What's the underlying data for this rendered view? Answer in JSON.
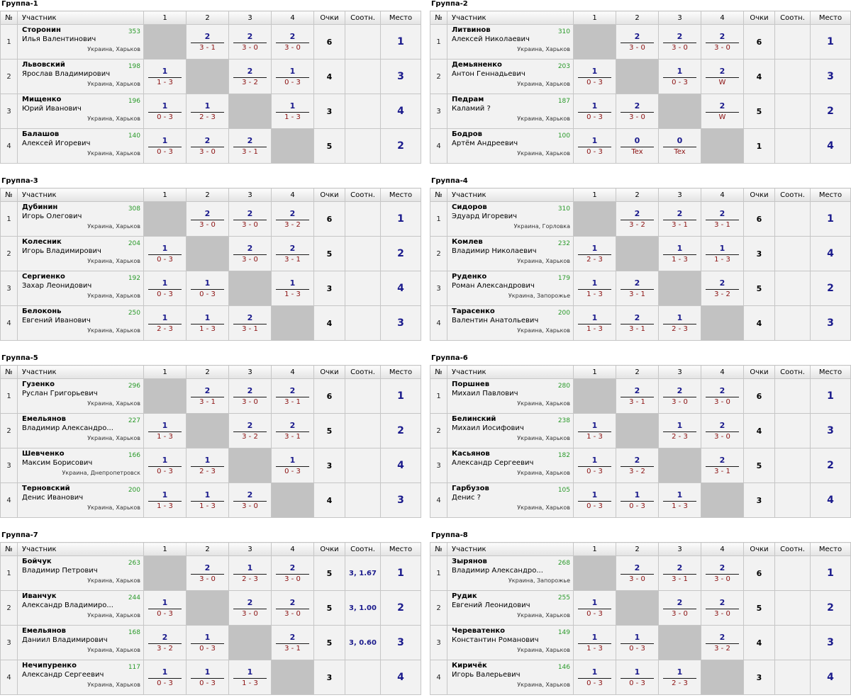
{
  "headers": {
    "num": "№",
    "player": "Участник",
    "cols": [
      "1",
      "2",
      "3",
      "4"
    ],
    "points": "Очки",
    "tiebreak": "Соотн.",
    "place": "Место"
  },
  "groups": [
    {
      "title": "Группа-1",
      "players": [
        {
          "n": "1",
          "last": "Сторонин",
          "first": "Илья Валентинович",
          "rating": "353",
          "city": "Украина, Харьков",
          "results": [
            null,
            [
              "2",
              "3 - 1"
            ],
            [
              "2",
              "3 - 0"
            ],
            [
              "2",
              "3 - 0"
            ]
          ],
          "points": "6",
          "tb": "",
          "place": "1"
        },
        {
          "n": "2",
          "last": "Львовский",
          "first": "Ярослав Владимирович",
          "rating": "198",
          "city": "Украина, Харьков",
          "results": [
            [
              "1",
              "1 - 3"
            ],
            null,
            [
              "2",
              "3 - 2"
            ],
            [
              "1",
              "0 - 3"
            ]
          ],
          "points": "4",
          "tb": "",
          "place": "3"
        },
        {
          "n": "3",
          "last": "Мищенко",
          "first": "Юрий Иванович",
          "rating": "196",
          "city": "Украина, Харьков",
          "results": [
            [
              "1",
              "0 - 3"
            ],
            [
              "1",
              "2 - 3"
            ],
            null,
            [
              "1",
              "1 - 3"
            ]
          ],
          "points": "3",
          "tb": "",
          "place": "4"
        },
        {
          "n": "4",
          "last": "Балашов",
          "first": "Алексей Игоревич",
          "rating": "140",
          "city": "Украина, Харьков",
          "results": [
            [
              "1",
              "0 - 3"
            ],
            [
              "2",
              "3 - 0"
            ],
            [
              "2",
              "3 - 1"
            ],
            null
          ],
          "points": "5",
          "tb": "",
          "place": "2"
        }
      ]
    },
    {
      "title": "Группа-2",
      "players": [
        {
          "n": "1",
          "last": "Литвинов",
          "first": "Алексей Николаевич",
          "rating": "310",
          "city": "Украина, Харьков",
          "results": [
            null,
            [
              "2",
              "3 - 0"
            ],
            [
              "2",
              "3 - 0"
            ],
            [
              "2",
              "3 - 0"
            ]
          ],
          "points": "6",
          "tb": "",
          "place": "1"
        },
        {
          "n": "2",
          "last": "Демьяненко",
          "first": "Антон Геннадьевич",
          "rating": "203",
          "city": "Украина, Харьков",
          "results": [
            [
              "1",
              "0 - 3"
            ],
            null,
            [
              "1",
              "0 - 3"
            ],
            [
              "2",
              "W"
            ]
          ],
          "points": "4",
          "tb": "",
          "place": "3"
        },
        {
          "n": "3",
          "last": "Педрам",
          "first": "Каламий ?",
          "rating": "187",
          "city": "Украина, Харьков",
          "results": [
            [
              "1",
              "0 - 3"
            ],
            [
              "2",
              "3 - 0"
            ],
            null,
            [
              "2",
              "W"
            ]
          ],
          "points": "5",
          "tb": "",
          "place": "2"
        },
        {
          "n": "4",
          "last": "Бодров",
          "first": "Артём Андреевич",
          "rating": "100",
          "city": "Украина, Харьков",
          "results": [
            [
              "1",
              "0 - 3"
            ],
            [
              "0",
              "Tex"
            ],
            [
              "0",
              "Tex"
            ],
            null
          ],
          "points": "1",
          "tb": "",
          "place": "4"
        }
      ]
    },
    {
      "title": "Группа-3",
      "players": [
        {
          "n": "1",
          "last": "Дубинин",
          "first": "Игорь Олегович",
          "rating": "308",
          "city": "Украина, Харьков",
          "results": [
            null,
            [
              "2",
              "3 - 0"
            ],
            [
              "2",
              "3 - 0"
            ],
            [
              "2",
              "3 - 2"
            ]
          ],
          "points": "6",
          "tb": "",
          "place": "1"
        },
        {
          "n": "2",
          "last": "Колесник",
          "first": "Игорь Владимирович",
          "rating": "204",
          "city": "Украина, Харьков",
          "results": [
            [
              "1",
              "0 - 3"
            ],
            null,
            [
              "2",
              "3 - 0"
            ],
            [
              "2",
              "3 - 1"
            ]
          ],
          "points": "5",
          "tb": "",
          "place": "2"
        },
        {
          "n": "3",
          "last": "Сергиенко",
          "first": "Захар Леонидович",
          "rating": "192",
          "city": "Украина, Харьков",
          "results": [
            [
              "1",
              "0 - 3"
            ],
            [
              "1",
              "0 - 3"
            ],
            null,
            [
              "1",
              "1 - 3"
            ]
          ],
          "points": "3",
          "tb": "",
          "place": "4"
        },
        {
          "n": "4",
          "last": "Белоконь",
          "first": "Евгений Иванович",
          "rating": "250",
          "city": "Украина, Харьков",
          "results": [
            [
              "1",
              "2 - 3"
            ],
            [
              "1",
              "1 - 3"
            ],
            [
              "2",
              "3 - 1"
            ],
            null
          ],
          "points": "4",
          "tb": "",
          "place": "3"
        }
      ]
    },
    {
      "title": "Группа-4",
      "players": [
        {
          "n": "1",
          "last": "Сидоров",
          "first": "Эдуард Игоревич",
          "rating": "310",
          "city": "Украина, Горловка",
          "results": [
            null,
            [
              "2",
              "3 - 2"
            ],
            [
              "2",
              "3 - 1"
            ],
            [
              "2",
              "3 - 1"
            ]
          ],
          "points": "6",
          "tb": "",
          "place": "1"
        },
        {
          "n": "2",
          "last": "Комлев",
          "first": "Владимир Николаевич",
          "rating": "232",
          "city": "Украина, Харьков",
          "results": [
            [
              "1",
              "2 - 3"
            ],
            null,
            [
              "1",
              "1 - 3"
            ],
            [
              "1",
              "1 - 3"
            ]
          ],
          "points": "3",
          "tb": "",
          "place": "4"
        },
        {
          "n": "3",
          "last": "Руденко",
          "first": "Роман Александрович",
          "rating": "179",
          "city": "Украина, Запорожье",
          "results": [
            [
              "1",
              "1 - 3"
            ],
            [
              "2",
              "3 - 1"
            ],
            null,
            [
              "2",
              "3 - 2"
            ]
          ],
          "points": "5",
          "tb": "",
          "place": "2"
        },
        {
          "n": "4",
          "last": "Тарасенко",
          "first": "Валентин Анатольевич",
          "rating": "200",
          "city": "Украина, Харьков",
          "results": [
            [
              "1",
              "1 - 3"
            ],
            [
              "2",
              "3 - 1"
            ],
            [
              "1",
              "2 - 3"
            ],
            null
          ],
          "points": "4",
          "tb": "",
          "place": "3"
        }
      ]
    },
    {
      "title": "Группа-5",
      "players": [
        {
          "n": "1",
          "last": "Гузенко",
          "first": "Руслан Григорьевич",
          "rating": "296",
          "city": "Украина, Харьков",
          "results": [
            null,
            [
              "2",
              "3 - 1"
            ],
            [
              "2",
              "3 - 0"
            ],
            [
              "2",
              "3 - 1"
            ]
          ],
          "points": "6",
          "tb": "",
          "place": "1"
        },
        {
          "n": "2",
          "last": "Емельянов",
          "first": "Владимир Александро...",
          "rating": "227",
          "city": "Украина, Харьков",
          "results": [
            [
              "1",
              "1 - 3"
            ],
            null,
            [
              "2",
              "3 - 2"
            ],
            [
              "2",
              "3 - 1"
            ]
          ],
          "points": "5",
          "tb": "",
          "place": "2"
        },
        {
          "n": "3",
          "last": "Шевченко",
          "first": "Максим Борисович",
          "rating": "166",
          "city": "Украина, Днепропетровск",
          "results": [
            [
              "1",
              "0 - 3"
            ],
            [
              "1",
              "2 - 3"
            ],
            null,
            [
              "1",
              "0 - 3"
            ]
          ],
          "points": "3",
          "tb": "",
          "place": "4"
        },
        {
          "n": "4",
          "last": "Терновский",
          "first": "Денис Иванович",
          "rating": "200",
          "city": "Украина, Харьков",
          "results": [
            [
              "1",
              "1 - 3"
            ],
            [
              "1",
              "1 - 3"
            ],
            [
              "2",
              "3 - 0"
            ],
            null
          ],
          "points": "4",
          "tb": "",
          "place": "3"
        }
      ]
    },
    {
      "title": "Группа-6",
      "players": [
        {
          "n": "1",
          "last": "Поршнев",
          "first": "Михаил Павлович",
          "rating": "280",
          "city": "Украина, Харьков",
          "results": [
            null,
            [
              "2",
              "3 - 1"
            ],
            [
              "2",
              "3 - 0"
            ],
            [
              "2",
              "3 - 0"
            ]
          ],
          "points": "6",
          "tb": "",
          "place": "1"
        },
        {
          "n": "2",
          "last": "Белинский",
          "first": "Михаил Иосифович",
          "rating": "238",
          "city": "Украина, Харьков",
          "results": [
            [
              "1",
              "1 - 3"
            ],
            null,
            [
              "1",
              "2 - 3"
            ],
            [
              "2",
              "3 - 0"
            ]
          ],
          "points": "4",
          "tb": "",
          "place": "3"
        },
        {
          "n": "3",
          "last": "Касьянов",
          "first": "Александр Сергеевич",
          "rating": "182",
          "city": "Украина, Харьков",
          "results": [
            [
              "1",
              "0 - 3"
            ],
            [
              "2",
              "3 - 2"
            ],
            null,
            [
              "2",
              "3 - 1"
            ]
          ],
          "points": "5",
          "tb": "",
          "place": "2"
        },
        {
          "n": "4",
          "last": "Гарбузов",
          "first": "Денис ?",
          "rating": "105",
          "city": "Украина, Харьков",
          "results": [
            [
              "1",
              "0 - 3"
            ],
            [
              "1",
              "0 - 3"
            ],
            [
              "1",
              "1 - 3"
            ],
            null
          ],
          "points": "3",
          "tb": "",
          "place": "4"
        }
      ]
    },
    {
      "title": "Группа-7",
      "players": [
        {
          "n": "1",
          "last": "Бойчук",
          "first": "Владимир Петрович",
          "rating": "263",
          "city": "Украина, Харьков",
          "results": [
            null,
            [
              "2",
              "3 - 0"
            ],
            [
              "1",
              "2 - 3"
            ],
            [
              "2",
              "3 - 0"
            ]
          ],
          "points": "5",
          "tb": "3, 1.67",
          "place": "1"
        },
        {
          "n": "2",
          "last": "Иванчук",
          "first": "Александр Владимиро...",
          "rating": "244",
          "city": "Украина, Харьков",
          "results": [
            [
              "1",
              "0 - 3"
            ],
            null,
            [
              "2",
              "3 - 0"
            ],
            [
              "2",
              "3 - 0"
            ]
          ],
          "points": "5",
          "tb": "3, 1.00",
          "place": "2"
        },
        {
          "n": "3",
          "last": "Емельянов",
          "first": "Даниил Владимирович",
          "rating": "168",
          "city": "Украина, Харьков",
          "results": [
            [
              "2",
              "3 - 2"
            ],
            [
              "1",
              "0 - 3"
            ],
            null,
            [
              "2",
              "3 - 1"
            ]
          ],
          "points": "5",
          "tb": "3, 0.60",
          "place": "3"
        },
        {
          "n": "4",
          "last": "Нечипуренко",
          "first": "Александр Сергеевич",
          "rating": "117",
          "city": "Украина, Харьков",
          "results": [
            [
              "1",
              "0 - 3"
            ],
            [
              "1",
              "0 - 3"
            ],
            [
              "1",
              "1 - 3"
            ],
            null
          ],
          "points": "3",
          "tb": "",
          "place": "4"
        }
      ]
    },
    {
      "title": "Группа-8",
      "players": [
        {
          "n": "1",
          "last": "Зырянов",
          "first": "Владимир Александро...",
          "rating": "268",
          "city": "Украина, Запорожье",
          "results": [
            null,
            [
              "2",
              "3 - 0"
            ],
            [
              "2",
              "3 - 1"
            ],
            [
              "2",
              "3 - 0"
            ]
          ],
          "points": "6",
          "tb": "",
          "place": "1"
        },
        {
          "n": "2",
          "last": "Рудик",
          "first": "Евгений Леонидович",
          "rating": "255",
          "city": "Украина, Харьков",
          "results": [
            [
              "1",
              "0 - 3"
            ],
            null,
            [
              "2",
              "3 - 0"
            ],
            [
              "2",
              "3 - 0"
            ]
          ],
          "points": "5",
          "tb": "",
          "place": "2"
        },
        {
          "n": "3",
          "last": "Череватенко",
          "first": "Константин Романович",
          "rating": "149",
          "city": "Украина, Харьков",
          "results": [
            [
              "1",
              "1 - 3"
            ],
            [
              "1",
              "0 - 3"
            ],
            null,
            [
              "2",
              "3 - 2"
            ]
          ],
          "points": "4",
          "tb": "",
          "place": "3"
        },
        {
          "n": "4",
          "last": "Киричёк",
          "first": "Игорь Валерьевич",
          "rating": "146",
          "city": "Украина, Харьков",
          "results": [
            [
              "1",
              "0 - 3"
            ],
            [
              "1",
              "0 - 3"
            ],
            [
              "1",
              "2 - 3"
            ],
            null
          ],
          "points": "3",
          "tb": "",
          "place": "4"
        }
      ]
    }
  ]
}
